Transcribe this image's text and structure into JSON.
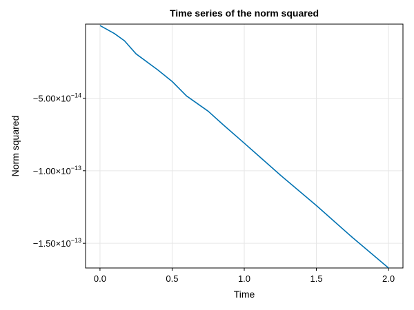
{
  "chart_data": {
    "type": "line",
    "title": "Time series of the norm squared",
    "xlabel": "Time",
    "ylabel": "Norm squared",
    "xlim": [
      -0.1,
      2.1
    ],
    "ylim": [
      -1.67e-13,
      1e-15
    ],
    "grid": true,
    "line_color": "#0072b2",
    "x_ticks": [
      {
        "value": 0.0,
        "label": "0.0"
      },
      {
        "value": 0.5,
        "label": "0.5"
      },
      {
        "value": 1.0,
        "label": "1.0"
      },
      {
        "value": 1.5,
        "label": "1.5"
      },
      {
        "value": 2.0,
        "label": "2.0"
      }
    ],
    "y_ticks": [
      {
        "value": -5e-14,
        "mantissa": "−5.00×10",
        "exponent": "−14"
      },
      {
        "value": -1e-13,
        "mantissa": "−1.00×10",
        "exponent": "−13"
      },
      {
        "value": -1.5e-13,
        "mantissa": "−1.50×10",
        "exponent": "−13"
      }
    ],
    "series": [
      {
        "x": [
          0.0,
          0.1,
          0.17,
          0.25,
          0.4,
          0.5,
          0.6,
          0.75,
          0.85,
          1.0,
          1.25,
          1.5,
          1.75,
          2.0
        ],
        "y": [
          0.0,
          -5.5e-15,
          -1.05e-14,
          -1.95e-14,
          -3.05e-14,
          -3.85e-14,
          -4.85e-14,
          -5.9e-14,
          -6.8e-14,
          -8.1e-14,
          -1.03e-13,
          -1.24e-13,
          -1.46e-13,
          -1.67e-13
        ]
      }
    ]
  }
}
